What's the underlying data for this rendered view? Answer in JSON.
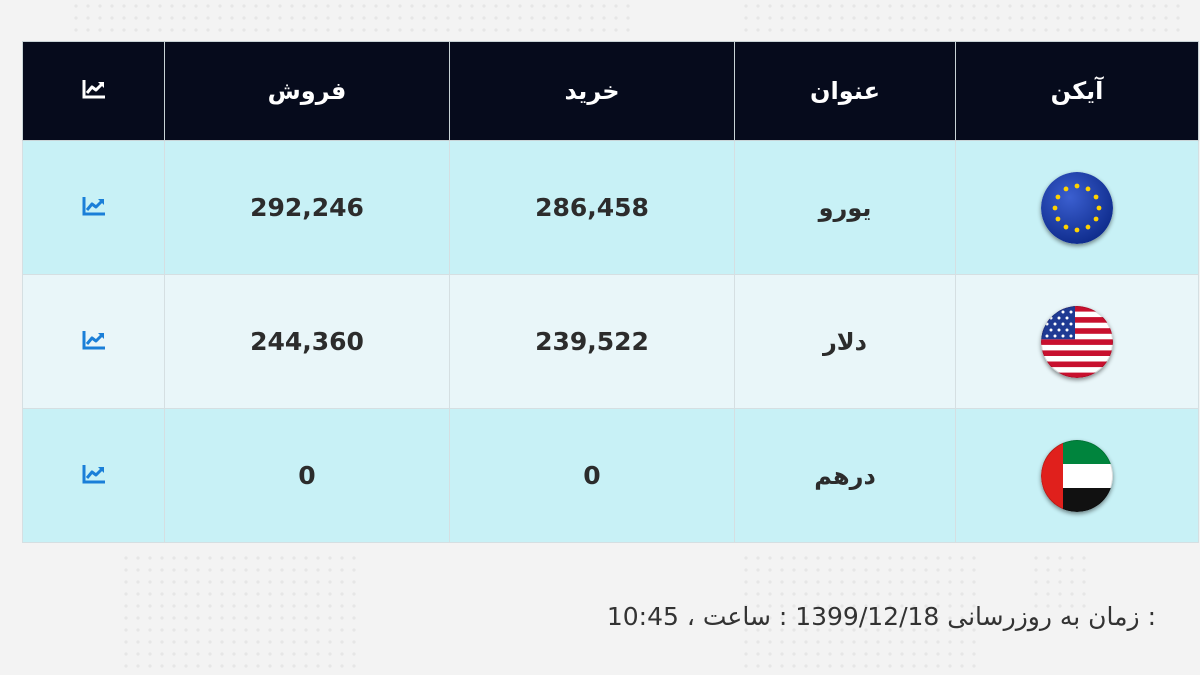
{
  "table": {
    "headers": {
      "icon": "آیکن",
      "title": "عنوان",
      "buy": "خرید",
      "sell": "فروش",
      "chart_icon": "chart-line-icon"
    },
    "rows": [
      {
        "flag": "eu-flag-icon",
        "title": "یورو",
        "buy": "286,458",
        "sell": "292,246",
        "chart_icon": "chart-line-icon"
      },
      {
        "flag": "us-flag-icon",
        "title": "دلار",
        "buy": "239,522",
        "sell": "244,360",
        "chart_icon": "chart-line-icon"
      },
      {
        "flag": "uae-flag-icon",
        "title": "درهم",
        "buy": "0",
        "sell": "0",
        "chart_icon": "chart-line-icon"
      }
    ]
  },
  "update": {
    "label": "زمان به روزرسانی :",
    "date": "1399/12/18",
    "separator": "، ساعت :",
    "time": "10:45"
  },
  "colors": {
    "header_bg": "#060b1c",
    "row_odd": "#c8f1f6",
    "row_even": "#e9f6f9",
    "chart_icon_header": "#ffffff",
    "chart_icon_row": "#1a7fd8"
  }
}
